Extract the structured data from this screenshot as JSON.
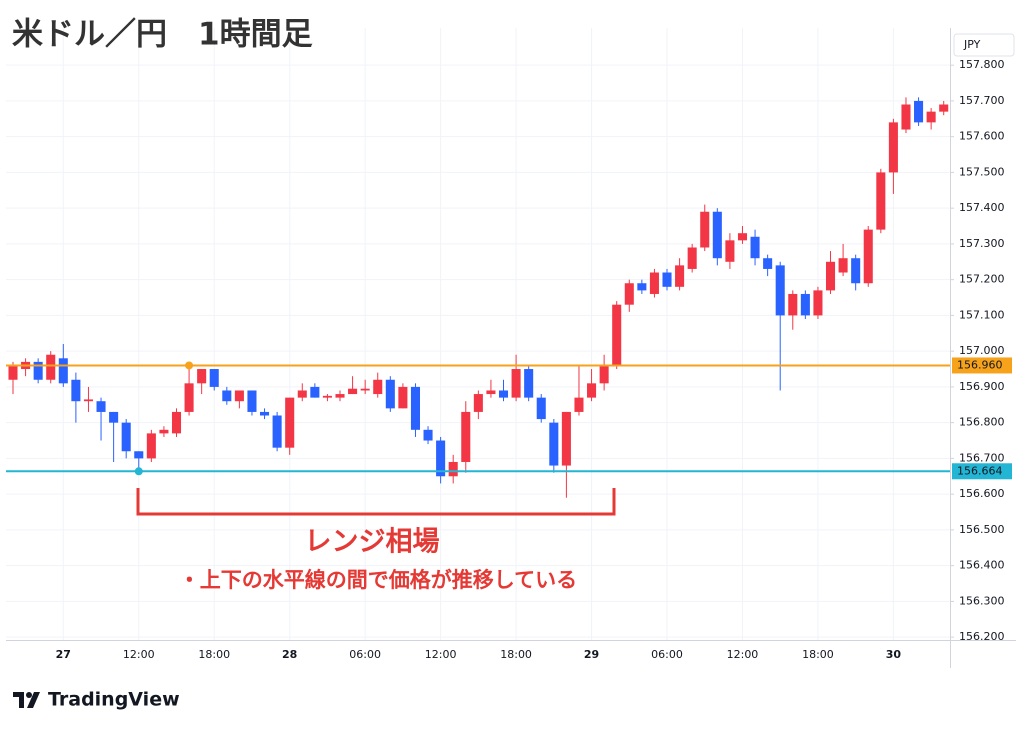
{
  "chart_data": {
    "type": "candlestick",
    "title": "米ドル／円　1時間足",
    "currency": "JPY",
    "annotation_title": "レンジ相場",
    "annotation_text": "・上下の水平線の間で価格が推移している",
    "brand": "TradingView",
    "categories": [
      null,
      null,
      null,
      null,
      "27",
      null,
      null,
      null,
      null,
      null,
      "12:00",
      null,
      null,
      null,
      null,
      null,
      "18:00",
      null,
      null,
      null,
      null,
      null,
      "28",
      null,
      null,
      null,
      null,
      null,
      "06:00",
      null,
      null,
      null,
      null,
      null,
      "12:00",
      null,
      null,
      null,
      null,
      null,
      "18:00",
      null,
      null,
      null,
      null,
      null,
      "29",
      null,
      null,
      null,
      null,
      null,
      "06:00",
      null,
      null,
      null,
      null,
      null,
      "12:00",
      null,
      null,
      null,
      null,
      null,
      "18:00",
      null,
      null,
      null,
      null,
      null,
      "30",
      null,
      null,
      null,
      null
    ],
    "series": [
      {
        "open": [
          156.92,
          156.95,
          156.97,
          156.92,
          156.98,
          156.92,
          156.86,
          156.86,
          156.83,
          156.8,
          156.72,
          156.7,
          156.77,
          156.77,
          156.83,
          156.91,
          156.95,
          156.89,
          156.86,
          156.89,
          156.83,
          156.82,
          156.73,
          156.87,
          156.9,
          156.87,
          156.87,
          156.88,
          156.89,
          156.88,
          156.92,
          156.84,
          156.9,
          156.78,
          156.75,
          156.65,
          156.69,
          156.83,
          156.88,
          156.89,
          156.87,
          156.95,
          156.87,
          156.8,
          156.68,
          156.83,
          156.87,
          156.91,
          156.96,
          157.13,
          157.19,
          157.16,
          157.22,
          157.18,
          157.23,
          157.29,
          157.39,
          157.25,
          157.31,
          157.32,
          157.26,
          157.24,
          157.1,
          157.16,
          157.1,
          157.17,
          157.22,
          157.26,
          157.19,
          157.34,
          157.5,
          157.62,
          157.7,
          157.64,
          157.67
        ],
        "high": [
          156.97,
          156.98,
          156.98,
          157.0,
          157.02,
          156.94,
          156.9,
          156.87,
          156.83,
          156.81,
          156.72,
          156.78,
          156.79,
          156.84,
          156.96,
          156.95,
          156.95,
          156.9,
          156.89,
          156.89,
          156.84,
          156.83,
          156.87,
          156.91,
          156.91,
          156.88,
          156.89,
          156.93,
          156.92,
          156.94,
          156.93,
          156.91,
          156.91,
          156.79,
          156.76,
          156.71,
          156.86,
          156.89,
          156.92,
          156.92,
          156.99,
          156.96,
          156.88,
          156.81,
          156.83,
          156.96,
          156.95,
          156.99,
          157.14,
          157.2,
          157.2,
          157.23,
          157.23,
          157.26,
          157.3,
          157.41,
          157.4,
          157.33,
          157.35,
          157.34,
          157.27,
          157.25,
          157.17,
          157.17,
          157.18,
          157.28,
          157.3,
          157.27,
          157.35,
          157.51,
          157.65,
          157.71,
          157.71,
          157.68,
          157.7
        ],
        "low": [
          156.88,
          156.93,
          156.91,
          156.91,
          156.9,
          156.8,
          156.83,
          156.75,
          156.69,
          156.7,
          156.66,
          156.69,
          156.76,
          156.76,
          156.82,
          156.88,
          156.89,
          156.85,
          156.84,
          156.82,
          156.81,
          156.72,
          156.71,
          156.86,
          156.87,
          156.86,
          156.86,
          156.88,
          156.88,
          156.87,
          156.83,
          156.84,
          156.76,
          156.74,
          156.63,
          156.63,
          156.66,
          156.81,
          156.87,
          156.86,
          156.86,
          156.86,
          156.8,
          156.66,
          156.59,
          156.82,
          156.86,
          156.89,
          156.95,
          157.11,
          157.16,
          157.15,
          157.17,
          157.17,
          157.22,
          157.28,
          157.24,
          157.23,
          157.3,
          157.24,
          157.21,
          156.89,
          157.06,
          157.09,
          157.09,
          157.16,
          157.21,
          157.17,
          157.18,
          157.33,
          157.44,
          157.61,
          157.63,
          157.62,
          157.66
        ],
        "close": [
          156.96,
          156.97,
          156.92,
          156.99,
          156.91,
          156.86,
          156.865,
          156.83,
          156.8,
          156.72,
          156.7,
          156.77,
          156.78,
          156.83,
          156.91,
          156.95,
          156.9,
          156.86,
          156.89,
          156.83,
          156.82,
          156.73,
          156.87,
          156.89,
          156.87,
          156.875,
          156.88,
          156.895,
          156.895,
          156.92,
          156.84,
          156.9,
          156.78,
          156.75,
          156.65,
          156.69,
          156.83,
          156.88,
          156.89,
          156.87,
          156.95,
          156.87,
          156.81,
          156.68,
          156.83,
          156.87,
          156.91,
          156.96,
          157.13,
          157.19,
          157.17,
          157.22,
          157.18,
          157.24,
          157.29,
          157.39,
          157.26,
          157.31,
          157.33,
          157.26,
          157.23,
          157.1,
          157.16,
          157.1,
          157.17,
          157.25,
          157.26,
          157.19,
          157.34,
          157.5,
          157.64,
          157.69,
          157.64,
          157.67,
          157.69
        ]
      }
    ],
    "up_color": "#f23645",
    "down_color": "#2962ff",
    "ylim": [
      156.192,
      157.904
    ],
    "yticks": [
      {
        "value": 156.2,
        "label": "156.200"
      },
      {
        "value": 156.3,
        "label": "156.300"
      },
      {
        "value": 156.4,
        "label": "156.400"
      },
      {
        "value": 156.5,
        "label": "156.500"
      },
      {
        "value": 156.6,
        "label": "156.600"
      },
      {
        "value": 156.7,
        "label": "156.700"
      },
      {
        "value": 156.8,
        "label": "156.800"
      },
      {
        "value": 156.9,
        "label": "156.900"
      },
      {
        "value": 157.0,
        "label": "157.000"
      },
      {
        "value": 157.1,
        "label": "157.100"
      },
      {
        "value": 157.2,
        "label": "157.200"
      },
      {
        "value": 157.3,
        "label": "157.300"
      },
      {
        "value": 157.4,
        "label": "157.400"
      },
      {
        "value": 157.5,
        "label": "157.500"
      },
      {
        "value": 157.6,
        "label": "157.600"
      },
      {
        "value": 157.7,
        "label": "157.700"
      },
      {
        "value": 157.8,
        "label": "157.800"
      }
    ],
    "hlines": [
      {
        "value": 156.96,
        "label": "156.960",
        "color": "#f7a21b"
      },
      {
        "value": 156.664,
        "label": "156.664",
        "color": "#22b5d4"
      }
    ],
    "grid": true
  }
}
